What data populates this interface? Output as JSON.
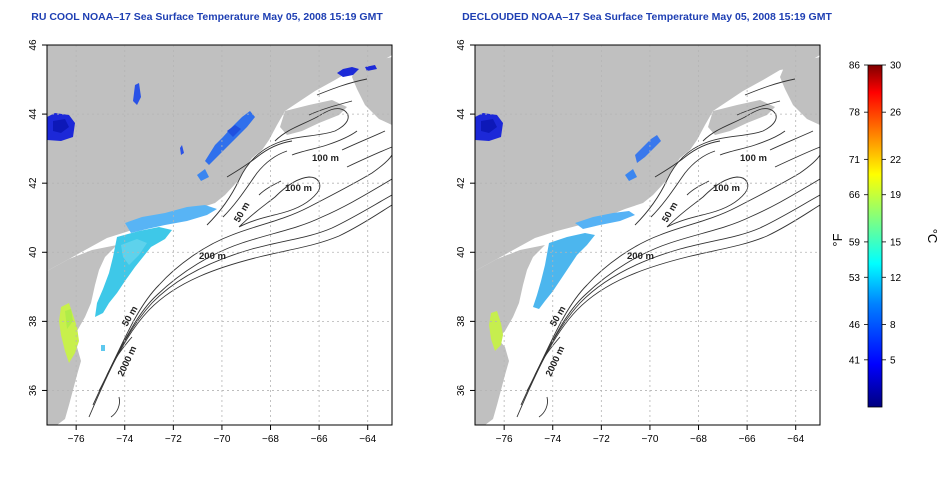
{
  "panels": [
    {
      "title": "RU COOL NOAA–17 Sea Surface Temperature May 05, 2008 15:19 GMT",
      "variant": "cool"
    },
    {
      "title": "DECLOUDED NOAA–17 Sea Surface Temperature May 05, 2008 15:19 GMT",
      "variant": "declouded"
    }
  ],
  "map": {
    "lon_ticks": [
      "−76",
      "−74",
      "−72",
      "−70",
      "−68",
      "−66",
      "−64"
    ],
    "lat_ticks": [
      "46",
      "44",
      "42",
      "40",
      "38",
      "36"
    ],
    "lon_values": [
      -76,
      -74,
      -72,
      -70,
      -68,
      -66,
      -64
    ],
    "lat_values": [
      46,
      44,
      42,
      40,
      38,
      36
    ],
    "lon_range": [
      -77.2,
      -63
    ],
    "lat_range": [
      35,
      46
    ],
    "depth_labels": [
      "100 m",
      "100 m",
      "50 m",
      "200 m",
      "50 m",
      "2000 m"
    ],
    "colors": {
      "land": "#c0c0c0",
      "water": "#ffffff",
      "contour": "#333333",
      "grid": "#b4b4b4",
      "title": "#1e3fb3"
    }
  },
  "colorbar": {
    "fahrenheit_ticks": [
      "86",
      "78",
      "71",
      "66",
      "59",
      "53",
      "46",
      "41"
    ],
    "celsius_ticks": [
      "30",
      "26",
      "22",
      "19",
      "15",
      "12",
      "8",
      "5"
    ],
    "fahrenheit_unit": "°F",
    "celsius_unit": "°C",
    "range_celsius": [
      1,
      30
    ],
    "colors": [
      "#00007f",
      "#0000ff",
      "#0080ff",
      "#00ffff",
      "#80ff80",
      "#ffff00",
      "#ff8000",
      "#ff0000",
      "#7f0000"
    ]
  }
}
